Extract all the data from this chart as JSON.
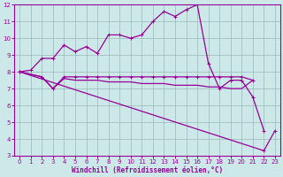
{
  "xlabel": "Windchill (Refroidissement éolien,°C)",
  "background_color": "#cce8e8",
  "line_color": "#990099",
  "grid_color": "#b0c8c8",
  "xlim": [
    -0.5,
    23.5
  ],
  "ylim": [
    3,
    12
  ],
  "yticks": [
    3,
    4,
    5,
    6,
    7,
    8,
    9,
    10,
    11,
    12
  ],
  "xticks": [
    0,
    1,
    2,
    3,
    4,
    5,
    6,
    7,
    8,
    9,
    10,
    11,
    12,
    13,
    14,
    15,
    16,
    17,
    18,
    19,
    20,
    21,
    22,
    23
  ],
  "line1_x": [
    0,
    1,
    2,
    3,
    4,
    5,
    6,
    7,
    8,
    9,
    10,
    11,
    12,
    13,
    14,
    15,
    16,
    17,
    18,
    19,
    20,
    21,
    22
  ],
  "line1_y": [
    8.0,
    8.1,
    8.8,
    8.8,
    9.6,
    9.2,
    9.5,
    9.1,
    10.2,
    10.2,
    10.0,
    10.2,
    11.0,
    11.6,
    11.3,
    11.7,
    12.0,
    8.5,
    7.0,
    7.5,
    7.5,
    6.5,
    4.5
  ],
  "line2_x": [
    0,
    2,
    3,
    4,
    5,
    6,
    7,
    8,
    9,
    10,
    11,
    12,
    13,
    14,
    15,
    16,
    17,
    18,
    19,
    20,
    21
  ],
  "line2_y": [
    8.0,
    7.7,
    7.0,
    7.7,
    7.7,
    7.7,
    7.7,
    7.7,
    7.7,
    7.7,
    7.7,
    7.7,
    7.7,
    7.7,
    7.7,
    7.7,
    7.7,
    7.7,
    7.7,
    7.7,
    7.5
  ],
  "line3_x": [
    0,
    2,
    3,
    4,
    5,
    6,
    7,
    8,
    9,
    10,
    11,
    12,
    13,
    14,
    15,
    16,
    17,
    18,
    19,
    20,
    21
  ],
  "line3_y": [
    8.0,
    7.7,
    7.0,
    7.6,
    7.5,
    7.5,
    7.5,
    7.4,
    7.4,
    7.4,
    7.3,
    7.3,
    7.3,
    7.2,
    7.2,
    7.2,
    7.1,
    7.1,
    7.0,
    7.0,
    7.5
  ],
  "line4_x": [
    0,
    22,
    23
  ],
  "line4_y": [
    8.0,
    3.3,
    4.5
  ]
}
